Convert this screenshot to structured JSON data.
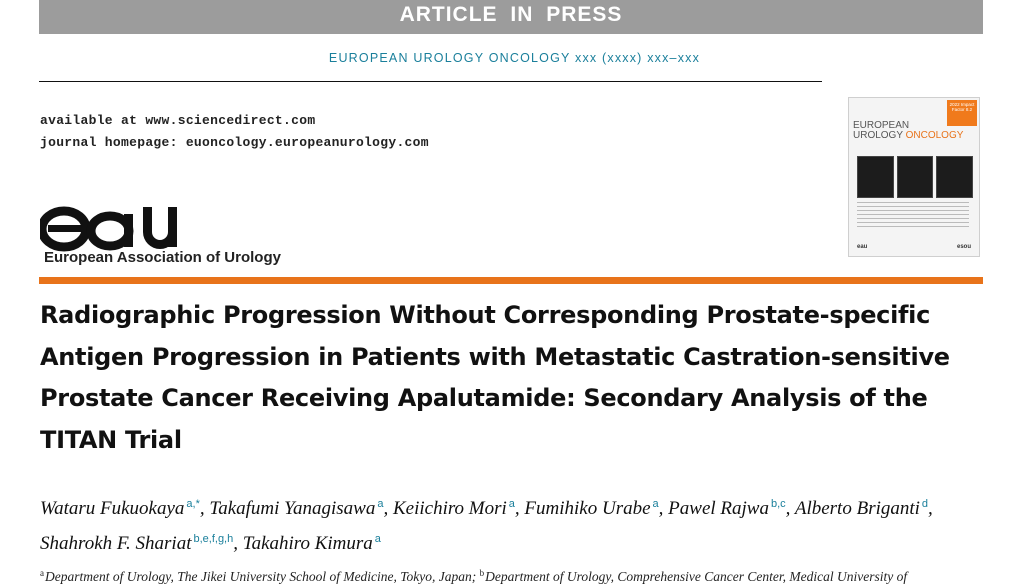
{
  "banner": "ARTICLE IN PRESS",
  "journal_line": "EUROPEAN UROLOGY ONCOLOGY xxx (xxxx) xxx–xxx",
  "availability": {
    "line1": "available at www.sciencedirect.com",
    "line2": "journal homepage: euoncology.europeanurology.com"
  },
  "publisher": {
    "logo_text": "eau",
    "org_name": "European Association of Urology"
  },
  "cover": {
    "badge": "2022 Impact Factor 8.2",
    "title_line1": "EUROPEAN",
    "title_word1": "UROLOGY",
    "title_word2": "ONCOLOGY",
    "foot_left": "eau",
    "foot_mid": "esou"
  },
  "colors": {
    "banner_bg": "#9c9c9c",
    "accent_orange": "#e8731a",
    "link_teal": "#1a7f9b"
  },
  "title": "Radiographic Progression Without Corresponding Prostate-specific Antigen Progression in Patients with Metastatic Castration-sensitive Prostate Cancer Receiving Apalutamide: Secondary Analysis of the TITAN Trial",
  "authors": [
    {
      "name": "Wataru Fukuokaya",
      "sup": "a,*"
    },
    {
      "name": "Takafumi Yanagisawa",
      "sup": "a"
    },
    {
      "name": "Keiichiro Mori",
      "sup": "a"
    },
    {
      "name": "Fumihiko Urabe",
      "sup": "a"
    },
    {
      "name": "Pawel Rajwa",
      "sup": "b,c"
    },
    {
      "name": "Alberto Briganti",
      "sup": "d"
    },
    {
      "name": "Shahrokh F. Shariat",
      "sup": "b,e,f,g,h"
    },
    {
      "name": "Takahiro Kimura",
      "sup": "a"
    }
  ],
  "affiliations": {
    "a_mark": "a",
    "a_text": "Department of Urology, The Jikei University School of Medicine, Tokyo, Japan;",
    "b_mark": "b",
    "b_text": "Department of Urology, Comprehensive Cancer Center, Medical University of"
  }
}
